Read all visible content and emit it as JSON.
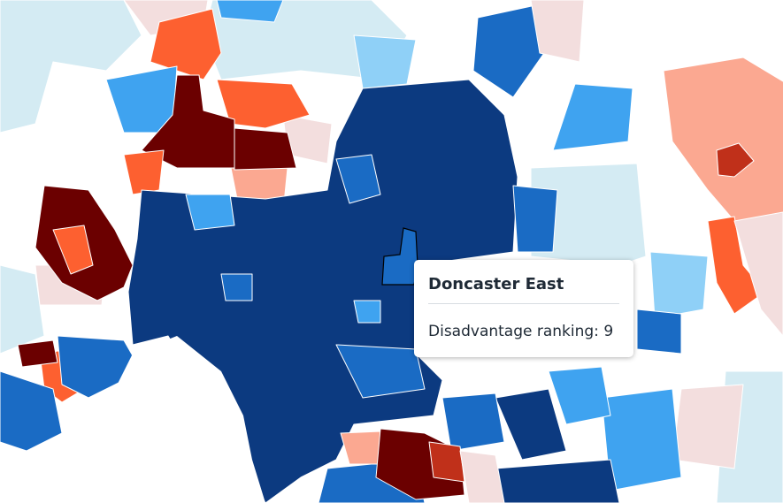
{
  "tooltip": {
    "title": "Doncaster East",
    "text": "Disadvantage ranking: 9"
  }
}
